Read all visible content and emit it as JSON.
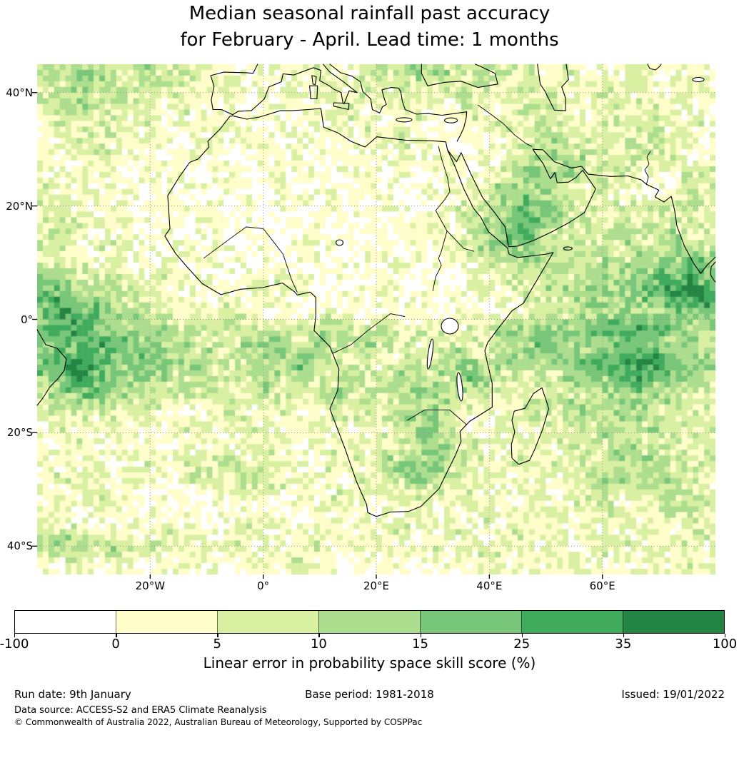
{
  "title": {
    "line1": "Median seasonal rainfall past accuracy",
    "line2": "for February - April. Lead time: 1 months"
  },
  "axes": {
    "x_ticks": [
      {
        "label": "20°W",
        "lon": -20
      },
      {
        "label": "0°",
        "lon": 0
      },
      {
        "label": "20°E",
        "lon": 20
      },
      {
        "label": "40°E",
        "lon": 40
      },
      {
        "label": "60°E",
        "lon": 60
      }
    ],
    "y_ticks": [
      {
        "label": "40°N",
        "lat": 40
      },
      {
        "label": "20°N",
        "lat": 20
      },
      {
        "label": "0°",
        "lat": 0
      },
      {
        "label": "20°S",
        "lat": -20
      },
      {
        "label": "40°S",
        "lat": -40
      }
    ]
  },
  "colorbar": {
    "boundaries": [
      "-100",
      "0",
      "5",
      "10",
      "15",
      "25",
      "35",
      "100"
    ],
    "colors": [
      "#ffffff",
      "#fffecb",
      "#d9f0a3",
      "#addd8e",
      "#78c679",
      "#41ab5d",
      "#238443"
    ],
    "label": "Linear error in probability space skill score (%)"
  },
  "footer": {
    "run_date": "Run date: 9th January",
    "base_period": "Base period: 1981-2018",
    "issued": "Issued: 19/01/2022",
    "data_source": "Data source: ACCESS-S2 and ERA5 Climate Reanalysis",
    "copyright": "© Commonwealth of Australia 2022, Australian Bureau of Meteorology, Supported by COSPPac"
  },
  "chart_data": {
    "type": "heatmap",
    "title": "Median seasonal rainfall past accuracy for February - April. Lead time: 1 months",
    "variable": "Linear error in probability space skill score (%)",
    "lon_range": [
      -40,
      80
    ],
    "lat_range": [
      -45,
      45
    ],
    "cell_size_deg": 1,
    "level_boundaries": [
      -100,
      0,
      5,
      10,
      15,
      25,
      35,
      100
    ],
    "level_colors": [
      "#ffffff",
      "#fffecb",
      "#d9f0a3",
      "#addd8e",
      "#78c679",
      "#41ab5d",
      "#238443"
    ],
    "level_meaning": "digit k in grid rows = skill-score bin k of level_boundaries, colored with level_colors[k]",
    "grid_resolution_deg": 3,
    "grid_rows_north_to_south": [
      "3233223222111111211222332222211211121111",
      "2332322221121111121212222221222122121121",
      "2232222121110111112111211211222112212111",
      "1222212111111011111211100112122212222121",
      "1122211101111101111112110011223222122211",
      "1112111011101111011111111011233322222211",
      "1111101110110111101111011112343322211122",
      "2111110101011011110110111123332212110122",
      "2211111011101011011011011223443221222222",
      "2221111101101001101101111234543222222222",
      "2211211110100101110110112234432222322322",
      "2221211111110101101111101222332323233343",
      "3322211211111121010111010112223233334454",
      "4433322111111211101010110111222333344565",
      "4544332212121010011011001101122233333444",
      "4554433322232222332221221223333344454433",
      "3445443332223332322322122222344333444332",
      "4465444333322334322212233323333344565433",
      "3464433323222323223223323432222333454432",
      "2334332222212222232222332221222223333222",
      "2222212111121121122223332111232332332322",
      "1211211121112111211212332112112223223222",
      "1121111011111211112122333211121222322212",
      "1112112122232211121133432211212122233222",
      "1211121112223221111222322111111223323321",
      "1112110110111101121112211211121122122322",
      "1101111011011110111111211121112112211221",
      "2221211211112111121112112111211121121112",
      "2332322212121211211121121212112112212211",
      "1121110111101112110111011121111211112121"
    ],
    "gridlines": {
      "lons": [
        -20,
        0,
        20,
        40,
        60
      ],
      "lats": [
        40,
        20,
        0,
        -20,
        -40
      ],
      "style": "dotted"
    }
  }
}
